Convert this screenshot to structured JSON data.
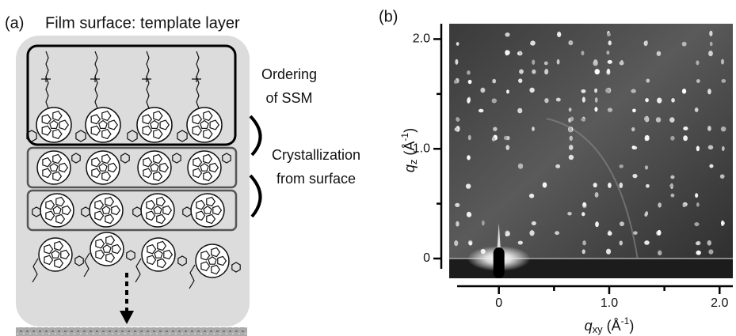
{
  "panel_a": {
    "label": "(a)",
    "title": "Film surface: template layer",
    "annotation_1": [
      "Ordering",
      "of SSM"
    ],
    "annotation_2": [
      "Crystallization",
      "from surface"
    ]
  },
  "panel_b": {
    "label": "(b)",
    "x_label": {
      "symbol": "q",
      "subscript": "xy",
      "unit": " (Å",
      "exponent": "-1",
      "close": ")"
    },
    "y_label": {
      "symbol": "q",
      "subscript": "z",
      "unit": " (Å",
      "exponent": "-1",
      "close": ")"
    },
    "xlim": [
      -0.45,
      2.12
    ],
    "ylim": [
      -0.18,
      2.14
    ],
    "xticks": [
      0,
      {
        "value": 1,
        "label": "1.0"
      },
      {
        "value": 2,
        "label": "2.0"
      }
    ],
    "xminor": [
      0.5,
      1.5
    ],
    "yticks": [
      0,
      {
        "value": 1,
        "label": "1.0"
      },
      {
        "value": 2,
        "label": "2.0"
      }
    ],
    "yminor": [
      0.5,
      1.5
    ]
  }
}
